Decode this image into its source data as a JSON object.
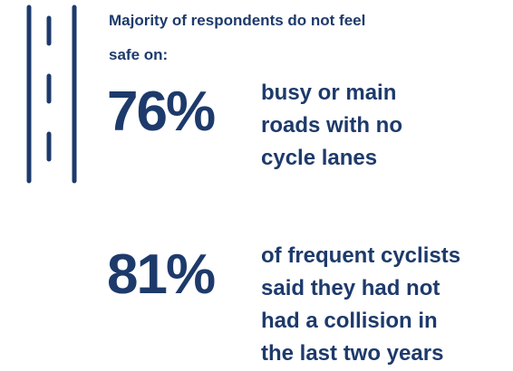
{
  "heading": [
    "Majority of respondents do not feel",
    "safe on:"
  ],
  "stats": [
    {
      "figure": "76%",
      "text": [
        "busy or main",
        "roads with no",
        "cycle lanes"
      ]
    },
    {
      "figure": "81%",
      "text": [
        "of frequent cyclists",
        "said they had not",
        "had a collision in",
        "the last two years"
      ]
    }
  ]
}
